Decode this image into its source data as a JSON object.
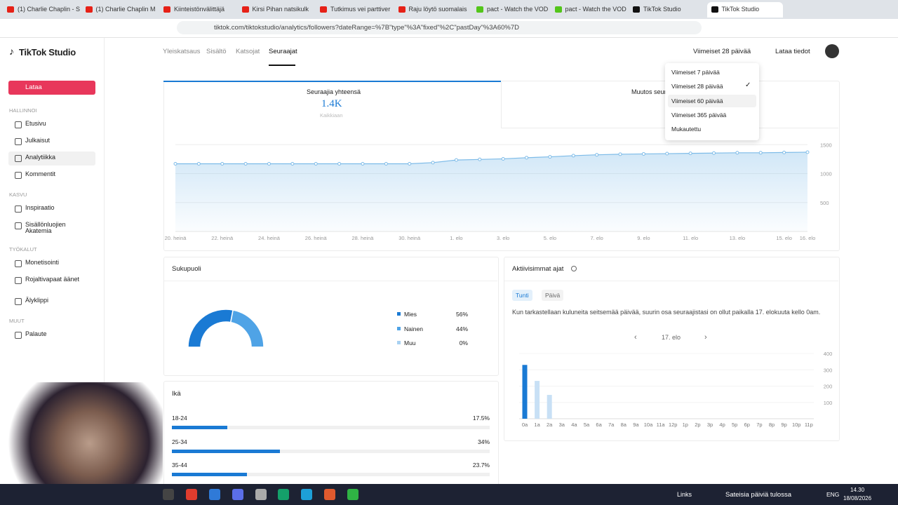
{
  "browser": {
    "tabs": [
      "(1) Charlie Chaplin - S",
      "(1) Charlie Chaplin M",
      "Kiinteistönvälittäjä",
      "Kirsi Pihan natsikulk",
      "Tutkimus vei parttiver",
      "Raju löytö suomalais",
      "pact - Watch the VOD",
      "pact - Watch the VOD",
      "TikTok Studio",
      "TikTok Studio"
    ],
    "url": "tiktok.com/tiktokstudio/analytics/followers?dateRange=%7B\"type\"%3A\"fixed\"%2C\"pastDay\"%3A60%7D"
  },
  "header": {
    "logo": "TikTok Studio",
    "nav": [
      "Yleiskatsaus",
      "Sisältö",
      "Katsojat",
      "Seuraajat"
    ],
    "date_range": "Viimeiset 28 päivää",
    "download": "Lataa tiedot"
  },
  "dropdown": {
    "options": [
      "Viimeiset 7 päivää",
      "Viimeiset 28 päivää",
      "Viimeiset 60 päivää",
      "Viimeiset 365 päivää",
      "Mukautettu"
    ]
  },
  "sidebar": {
    "upload": "Lataa",
    "sections": [
      {
        "title": "HALLINNOI",
        "items": [
          "Etusivu",
          "Julkaisut",
          "Analytiikka",
          "Kommentit"
        ]
      },
      {
        "title": "KASVU",
        "items": [
          "Inspiraatio",
          "Sisällönluojien Akatemia"
        ]
      },
      {
        "title": "TYÖKALUT",
        "items": [
          "Monetisointi",
          "Rojaltivapaat äänet",
          "Älyklippi"
        ]
      },
      {
        "title": "MUUT",
        "items": [
          "Palaute"
        ]
      }
    ]
  },
  "summary": {
    "total_label": "Seuraajia yhteensä",
    "total_value": "1.4K",
    "total_sub": "Kaikkiaan",
    "change_label": "Muutos seura"
  },
  "chart_data": [
    {
      "type": "line",
      "color": "#7dbbe8",
      "grid": true,
      "categories": [
        "20. heinä",
        null,
        "22. heinä",
        null,
        "24. heinä",
        null,
        "26. heinä",
        null,
        "28. heinä",
        null,
        "30. heinä",
        null,
        "1. elo",
        null,
        "3. elo",
        null,
        "5. elo",
        null,
        "7. elo",
        null,
        "9. elo",
        null,
        "11. elo",
        null,
        "13. elo",
        null,
        "15. elo",
        "16. elo"
      ],
      "values": [
        1170,
        1170,
        1170,
        1170,
        1170,
        1170,
        1170,
        1170,
        1170,
        1170,
        1170,
        1190,
        1235,
        1245,
        1255,
        1275,
        1290,
        1310,
        1325,
        1335,
        1340,
        1345,
        1350,
        1355,
        1360,
        1360,
        1365,
        1370
      ],
      "ylim": [
        0,
        1600
      ],
      "yticks": [
        500,
        1000,
        1500
      ]
    },
    {
      "type": "pie",
      "title": "Sukupuoli",
      "categories": [
        "Mies",
        "Nainen",
        "Muu"
      ],
      "values": [
        56,
        44,
        0
      ],
      "value_labels": [
        "56%",
        "44%",
        "0%"
      ],
      "colors": [
        "#1a7ad4",
        "#4fa3e6",
        "#a8d1f2"
      ]
    },
    {
      "type": "bar",
      "title": "Ikä",
      "categories": [
        "18-24",
        "25-34",
        "35-44"
      ],
      "values": [
        17.5,
        34,
        23.7
      ],
      "value_labels": [
        "17.5%",
        "34%",
        "23.7%"
      ],
      "xlim": [
        0,
        100
      ],
      "color": "#1a7ad4"
    },
    {
      "type": "bar",
      "title": "Aktiivisimmat ajat",
      "categories": [
        "0a",
        "1a",
        "2a",
        "3a",
        "4a",
        "5a",
        "6a",
        "7a",
        "8a",
        "9a",
        "10a",
        "11a",
        "12p",
        "1p",
        "2p",
        "3p",
        "4p",
        "5p",
        "6p",
        "7p",
        "8p",
        "9p",
        "10p",
        "11p"
      ],
      "values": [
        330,
        232,
        146,
        0,
        0,
        0,
        0,
        0,
        0,
        0,
        0,
        0,
        0,
        0,
        0,
        0,
        0,
        0,
        0,
        0,
        0,
        0,
        0,
        0
      ],
      "colors": [
        "#1a7ad4",
        "#c8e0f5",
        "#c8e0f5",
        "#c8e0f5",
        "#c8e0f5",
        "#c8e0f5",
        "#c8e0f5",
        "#c8e0f5",
        "#c8e0f5",
        "#c8e0f5",
        "#c8e0f5",
        "#c8e0f5",
        "#c8e0f5",
        "#c8e0f5",
        "#c8e0f5",
        "#c8e0f5",
        "#c8e0f5",
        "#c8e0f5",
        "#c8e0f5",
        "#c8e0f5",
        "#c8e0f5",
        "#c8e0f5",
        "#c8e0f5",
        "#c8e0f5"
      ],
      "ylim": [
        0,
        400
      ],
      "yticks": [
        100,
        200,
        300,
        400
      ]
    }
  ],
  "activity": {
    "tabs": [
      "Tunti",
      "Päivä"
    ],
    "description": "Kun tarkastellaan kuluneita seitsemää päivää, suurin osa seuraajistasi on ollut paikalla 17. elokuuta kello 0am.",
    "date": "17. elo"
  },
  "taskbar": {
    "links": "Links",
    "weather": "Sateisia päiviä tulossa",
    "language": "ENG",
    "time": "14.30",
    "date": "18/08/2026"
  }
}
